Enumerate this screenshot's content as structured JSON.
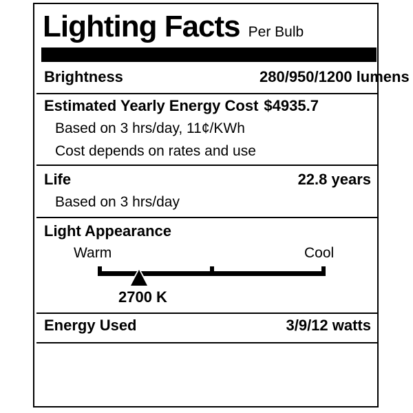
{
  "label": {
    "title": "Lighting Facts",
    "subtitle": "Per Bulb",
    "brightness": {
      "label": "Brightness",
      "value": "280/950/1200 lumens"
    },
    "energy_cost": {
      "label": "Estimated Yearly Energy Cost",
      "value": "$4935.7",
      "note1": "Based on 3 hrs/day, 11¢/KWh",
      "note2": "Cost depends on rates and use"
    },
    "life": {
      "label": "Life",
      "value": "22.8 years",
      "note": "Based on 3 hrs/day"
    },
    "light_appearance": {
      "label": "Light Appearance",
      "warm_label": "Warm",
      "cool_label": "Cool",
      "kelvin": "2700 K",
      "marker_position_pct": 18.1
    },
    "energy_used": {
      "label": "Energy Used",
      "value": "3/9/12 watts"
    },
    "colors": {
      "ink": "#000000",
      "background": "#ffffff"
    }
  }
}
